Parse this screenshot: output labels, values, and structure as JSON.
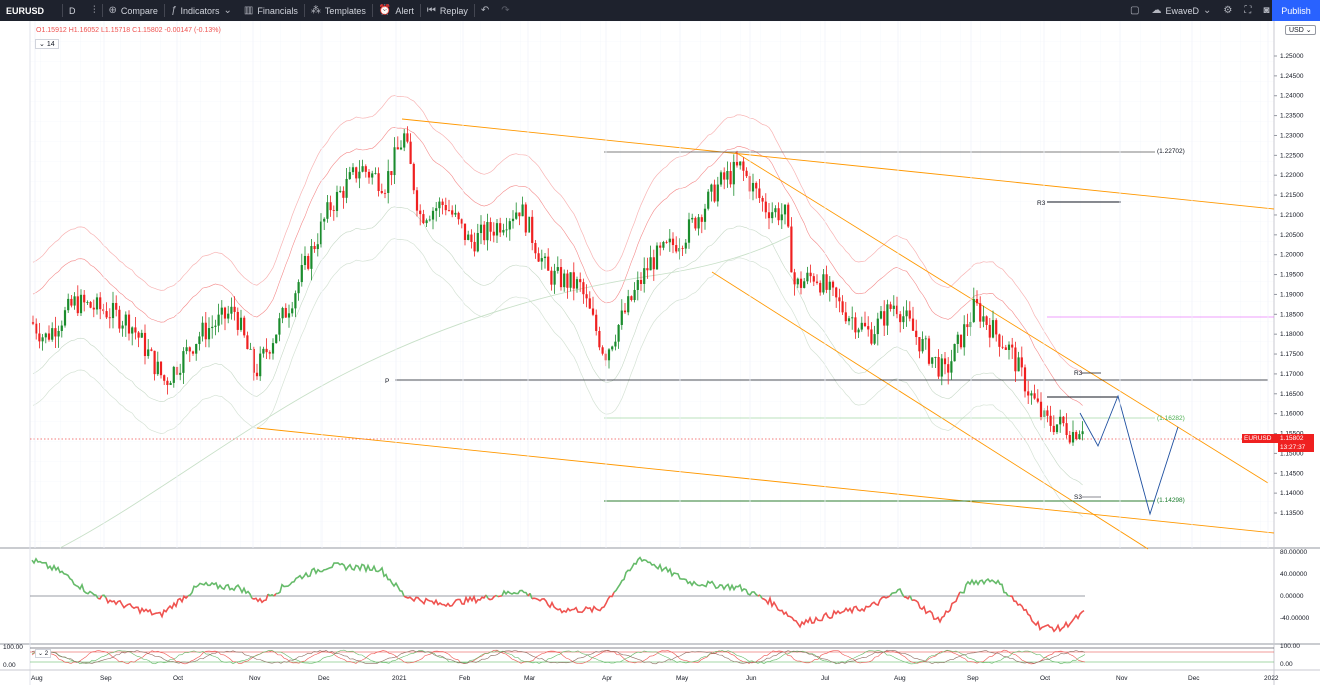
{
  "toolbar": {
    "symbol": "EURUSD",
    "interval": "D",
    "compare": "Compare",
    "indicators": "Indicators",
    "financials": "Financials",
    "templates": "Templates",
    "alert": "Alert",
    "replay": "Replay",
    "user": "EwaveD",
    "publish": "Publish"
  },
  "legend": {
    "ohlc": "O1.15912  H1.16052  L1.15718  C1.15802  -0.00147 (-0.13%)",
    "study": "14",
    "pane3": "2"
  },
  "currency": "USD",
  "price_axis": {
    "ticks": [
      "1.25000",
      "1.24500",
      "1.24000",
      "1.23500",
      "1.23000",
      "1.22500",
      "1.22000",
      "1.21500",
      "1.21000",
      "1.20500",
      "1.20000",
      "1.19500",
      "1.19000",
      "1.18500",
      "1.18000",
      "1.17500",
      "1.17000",
      "1.16500",
      "1.16000",
      "1.15500",
      "1.15000",
      "1.14500",
      "1.14000",
      "1.13500"
    ],
    "osc_ticks": [
      "80.00000",
      "40.00000",
      "0.00000",
      "-40.00000"
    ],
    "pane3_ticks": [
      "100.00",
      "0.00"
    ],
    "pane3_left_ticks": [
      "100.00",
      "0.00"
    ]
  },
  "last_price": {
    "symbol": "EURUSD",
    "price": "1.15802",
    "countdown": "13:27:37"
  },
  "time_axis": [
    "Aug",
    "Sep",
    "Oct",
    "Nov",
    "Dec",
    "2021",
    "Feb",
    "Mar",
    "Apr",
    "May",
    "Jun",
    "Jul",
    "Aug",
    "Sep",
    "Oct",
    "Nov",
    "Dec",
    "2022"
  ],
  "levels": {
    "high_label": "(1.22702)",
    "mid_label": "(1.16282)",
    "low_label": "(1.14298)",
    "pivot": "P",
    "r1": "R3",
    "r2": "R3",
    "s1": "S3"
  },
  "colors": {
    "up": "#26a69a",
    "up_body": "#1b8c2d",
    "down": "#ef2020",
    "channel": "#ff9800",
    "osc_up": "#66bb6a",
    "osc_down": "#ef5350",
    "projection": "#1e4fa0",
    "accent": "#2962ff"
  }
}
